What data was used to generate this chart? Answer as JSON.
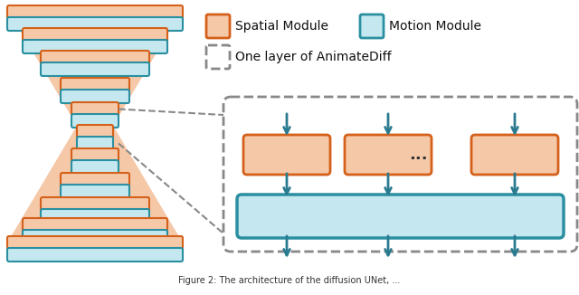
{
  "bg_color": "#ffffff",
  "orange_fill": "#f5c8a8",
  "orange_border": "#d4601a",
  "teal_fill": "#c5e8f0",
  "teal_border": "#2a8fa0",
  "arrow_color": "#2a7a90",
  "dashed_box_color": "#888888",
  "legend_spatial_label": "Spatial Module",
  "legend_motion_label": "Motion Module",
  "legend_layer_label": "One layer of AnimateDiff",
  "dots_text": "..."
}
